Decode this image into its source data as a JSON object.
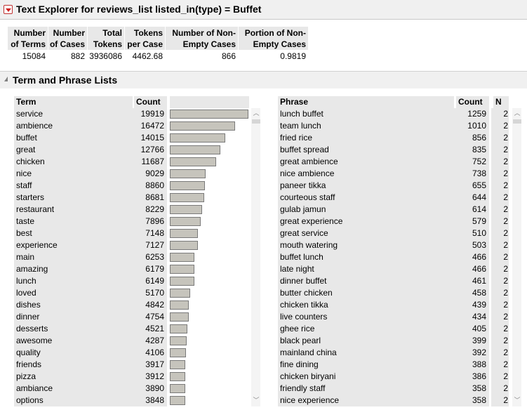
{
  "window": {
    "title": "Text Explorer for reviews_list listed_in(type) = Buffet"
  },
  "summary": {
    "headers": [
      [
        "Number",
        "of Terms"
      ],
      [
        "Number",
        "of Cases"
      ],
      [
        "Total",
        "Tokens"
      ],
      [
        "Tokens",
        "per Case"
      ],
      [
        "Number of Non-",
        "Empty Cases"
      ],
      [
        "Portion of Non-",
        "Empty Cases"
      ]
    ],
    "values": [
      "15084",
      "882",
      "3936086",
      "4462.68",
      "866",
      "0.9819"
    ]
  },
  "section": {
    "title": "Term and Phrase Lists"
  },
  "term_list": {
    "headers": {
      "term": "Term",
      "count": "Count"
    },
    "max_count": 19919,
    "rows": [
      {
        "term": "service",
        "count": 19919
      },
      {
        "term": "ambience",
        "count": 16472
      },
      {
        "term": "buffet",
        "count": 14015
      },
      {
        "term": "great",
        "count": 12766
      },
      {
        "term": "chicken",
        "count": 11687
      },
      {
        "term": "nice",
        "count": 9029
      },
      {
        "term": "staff",
        "count": 8860
      },
      {
        "term": "starters",
        "count": 8681
      },
      {
        "term": "restaurant",
        "count": 8229
      },
      {
        "term": "taste",
        "count": 7896
      },
      {
        "term": "best",
        "count": 7148
      },
      {
        "term": "experience",
        "count": 7127
      },
      {
        "term": "main",
        "count": 6253
      },
      {
        "term": "amazing",
        "count": 6179
      },
      {
        "term": "lunch",
        "count": 6149
      },
      {
        "term": "loved",
        "count": 5170
      },
      {
        "term": "dishes",
        "count": 4842
      },
      {
        "term": "dinner",
        "count": 4754
      },
      {
        "term": "desserts",
        "count": 4521
      },
      {
        "term": "awesome",
        "count": 4287
      },
      {
        "term": "quality",
        "count": 4106
      },
      {
        "term": "friends",
        "count": 3917
      },
      {
        "term": "pizza",
        "count": 3912
      },
      {
        "term": "ambiance",
        "count": 3890
      },
      {
        "term": "options",
        "count": 3848
      }
    ]
  },
  "phrase_list": {
    "headers": {
      "phrase": "Phrase",
      "count": "Count",
      "n": "N"
    },
    "rows": [
      {
        "phrase": "lunch buffet",
        "count": "1259",
        "n": "2"
      },
      {
        "phrase": "team lunch",
        "count": "1010",
        "n": "2"
      },
      {
        "phrase": "fried rice",
        "count": "856",
        "n": "2"
      },
      {
        "phrase": "buffet spread",
        "count": "835",
        "n": "2"
      },
      {
        "phrase": "great ambience",
        "count": "752",
        "n": "2"
      },
      {
        "phrase": "nice ambience",
        "count": "738",
        "n": "2"
      },
      {
        "phrase": "paneer tikka",
        "count": "655",
        "n": "2"
      },
      {
        "phrase": "courteous staff",
        "count": "644",
        "n": "2"
      },
      {
        "phrase": "gulab jamun",
        "count": "614",
        "n": "2"
      },
      {
        "phrase": "great experience",
        "count": "579",
        "n": "2"
      },
      {
        "phrase": "great service",
        "count": "510",
        "n": "2"
      },
      {
        "phrase": "mouth watering",
        "count": "503",
        "n": "2"
      },
      {
        "phrase": "buffet lunch",
        "count": "466",
        "n": "2"
      },
      {
        "phrase": "late night",
        "count": "466",
        "n": "2"
      },
      {
        "phrase": "dinner buffet",
        "count": "461",
        "n": "2"
      },
      {
        "phrase": "butter chicken",
        "count": "458",
        "n": "2"
      },
      {
        "phrase": "chicken tikka",
        "count": "439",
        "n": "2"
      },
      {
        "phrase": "live counters",
        "count": "434",
        "n": "2"
      },
      {
        "phrase": "ghee rice",
        "count": "405",
        "n": "2"
      },
      {
        "phrase": "black pearl",
        "count": "399",
        "n": "2"
      },
      {
        "phrase": "mainland china",
        "count": "392",
        "n": "2"
      },
      {
        "phrase": "fine dining",
        "count": "388",
        "n": "2"
      },
      {
        "phrase": "chicken biryani",
        "count": "386",
        "n": "2"
      },
      {
        "phrase": "friendly staff",
        "count": "358",
        "n": "2"
      },
      {
        "phrase": "nice experience",
        "count": "358",
        "n": "2"
      }
    ]
  },
  "icons": {
    "collapse": "red-disclosure-triangle-icon",
    "section": "gray-disclosure-triangle-icon",
    "scroll_up": "scroll-up-arrow-icon",
    "scroll_down": "scroll-down-arrow-icon"
  },
  "colors": {
    "bar_fill": "#c6c4bc",
    "header_bg": "#e8e8e8",
    "disclosure_red": "#d02020"
  }
}
